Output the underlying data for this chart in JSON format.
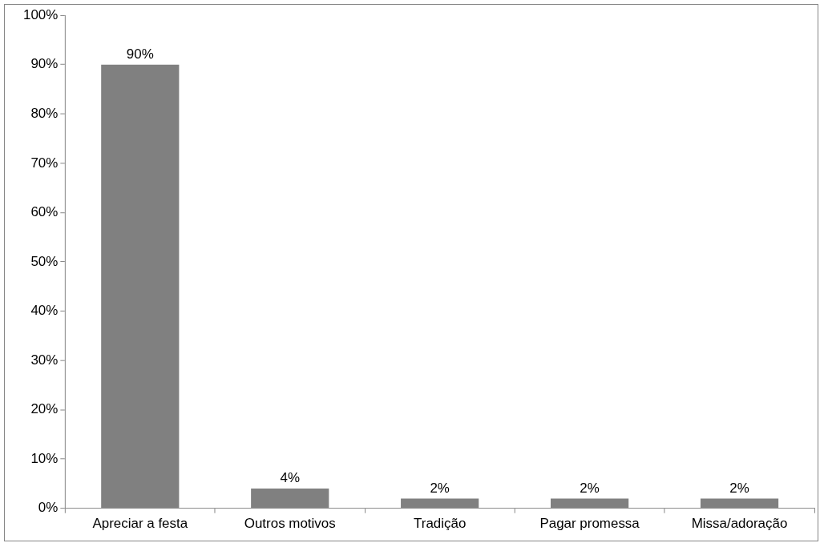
{
  "chart_data": {
    "type": "bar",
    "categories": [
      "Apreciar a festa",
      "Outros motivos",
      "Tradição",
      "Pagar promessa",
      "Missa/adoração"
    ],
    "values": [
      90,
      4,
      2,
      2,
      2
    ],
    "color": "#808080",
    "ylim": [
      0,
      100
    ],
    "yticks": [
      {
        "value": 0,
        "label": "0%"
      },
      {
        "value": 10,
        "label": "10%"
      },
      {
        "value": 20,
        "label": "20%"
      },
      {
        "value": 30,
        "label": "30%"
      },
      {
        "value": 40,
        "label": "40%"
      },
      {
        "value": 50,
        "label": "50%"
      },
      {
        "value": 60,
        "label": "60%"
      },
      {
        "value": 70,
        "label": "70%"
      },
      {
        "value": 80,
        "label": "80%"
      },
      {
        "value": 90,
        "label": "90%"
      },
      {
        "value": 100,
        "label": "100%"
      }
    ],
    "value_labels": [
      "90%",
      "4%",
      "2%",
      "2%",
      "2%"
    ],
    "grid": false,
    "legend": false
  }
}
